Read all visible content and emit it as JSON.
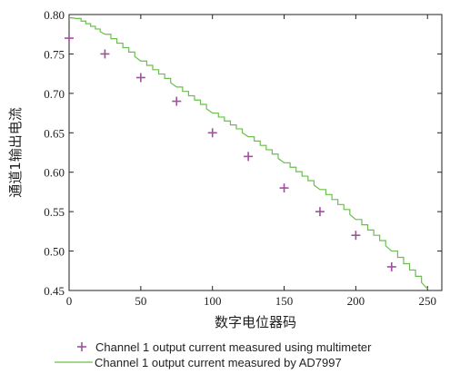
{
  "colors": {
    "multimeter": "#a0509c",
    "ad7997": "#6abf4b",
    "axis": "#222222",
    "background": "#ffffff"
  },
  "chart_data": {
    "type": "scatter",
    "title": "",
    "xlabel": "数字电位器码",
    "ylabel": "通道1输出电流",
    "xlim": [
      0,
      260
    ],
    "ylim": [
      0.45,
      0.8
    ],
    "xticks": [
      "0",
      "50",
      "100",
      "150",
      "200",
      "250"
    ],
    "yticks": [
      "0.45",
      "0.50",
      "0.55",
      "0.60",
      "0.65",
      "0.70",
      "0.75",
      "0.80"
    ],
    "grid": false,
    "legend_position": "bottom",
    "series": [
      {
        "name": "Channel 1 output current measured using multimeter",
        "kind": "scatter",
        "marker": "plus",
        "x": [
          0,
          25,
          50,
          75,
          100,
          125,
          150,
          175,
          200,
          225
        ],
        "y": [
          0.77,
          0.75,
          0.72,
          0.69,
          0.65,
          0.62,
          0.58,
          0.55,
          0.52,
          0.48
        ]
      },
      {
        "name": "Channel 1 output current measured by AD7997",
        "kind": "line",
        "x": [
          0,
          5,
          25,
          50,
          75,
          100,
          125,
          150,
          175,
          200,
          225,
          250
        ],
        "y": [
          0.796,
          0.795,
          0.775,
          0.741,
          0.708,
          0.675,
          0.645,
          0.612,
          0.578,
          0.54,
          0.5,
          0.452
        ]
      }
    ]
  }
}
